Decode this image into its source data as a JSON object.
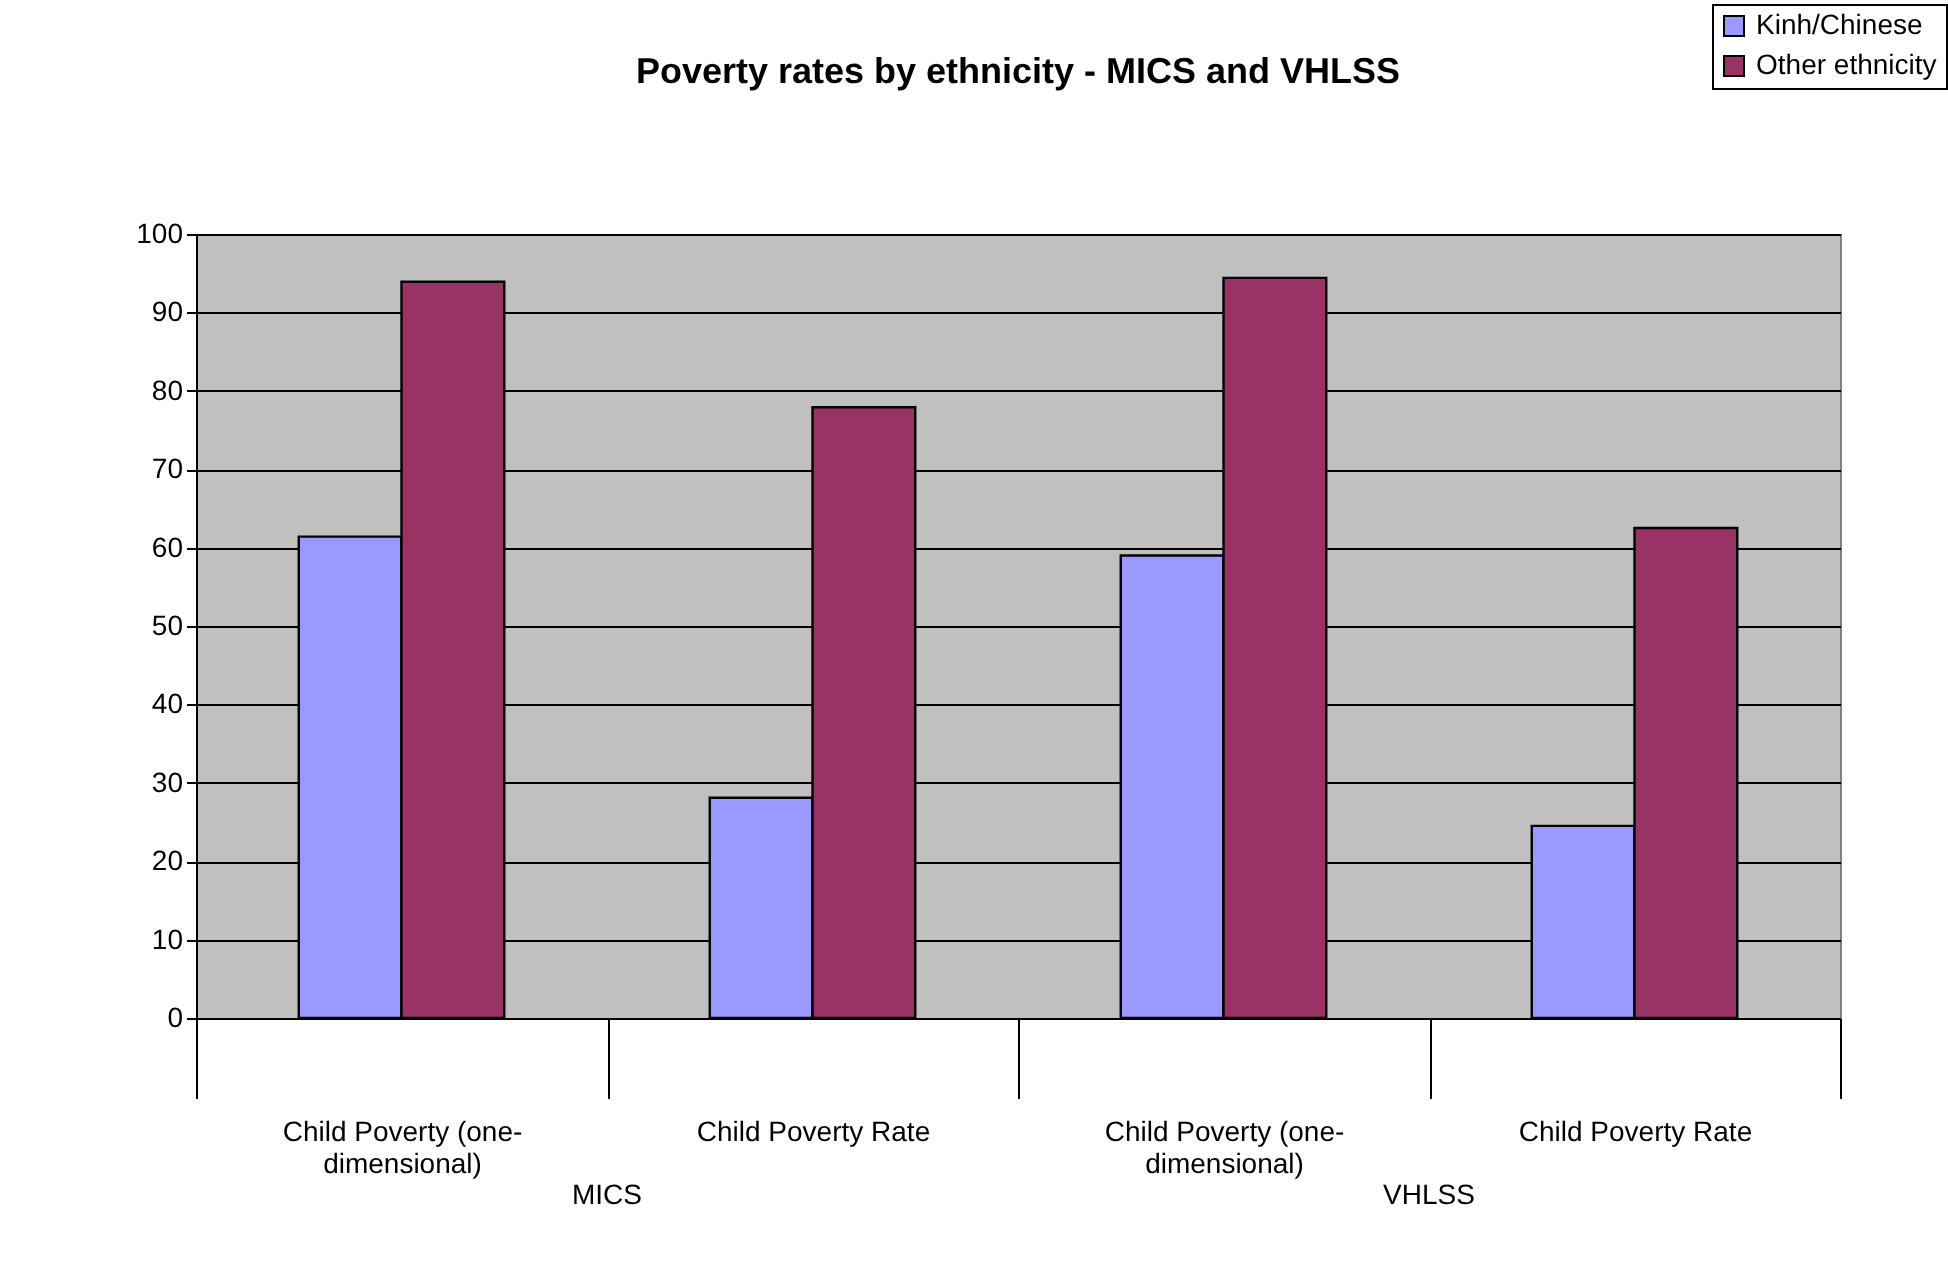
{
  "chart_data": {
    "type": "bar",
    "title": "Poverty rates by ethnicity - MICS and VHLSS",
    "categories": [
      "Child Poverty (one-dimensional)",
      "Child Poverty Rate",
      "Child Poverty (one-dimensional)",
      "Child Poverty Rate"
    ],
    "series": [
      {
        "name": "Kinh/Chinese",
        "color": "#9999ff",
        "values": [
          61.4,
          28.1,
          59.0,
          24.5
        ]
      },
      {
        "name": "Other ethnicity",
        "color": "#993366",
        "values": [
          93.9,
          77.9,
          94.4,
          62.5
        ]
      }
    ],
    "ylim": [
      0,
      100
    ],
    "yticks": [
      0,
      10,
      20,
      30,
      40,
      50,
      60,
      70,
      80,
      90,
      100
    ],
    "grid": "y",
    "legend": "top right",
    "annotations": [
      "MICS",
      "VHLSS"
    ]
  }
}
